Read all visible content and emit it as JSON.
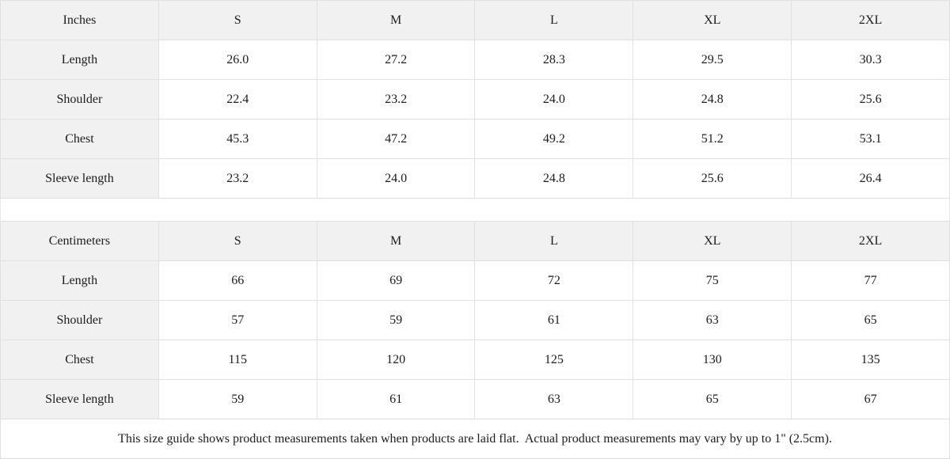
{
  "sizes": [
    "S",
    "M",
    "L",
    "XL",
    "2XL"
  ],
  "tables": [
    {
      "unit": "Inches",
      "rows": [
        {
          "label": "Length",
          "values": [
            "26.0",
            "27.2",
            "28.3",
            "29.5",
            "30.3"
          ]
        },
        {
          "label": "Shoulder",
          "values": [
            "22.4",
            "23.2",
            "24.0",
            "24.8",
            "25.6"
          ]
        },
        {
          "label": "Chest",
          "values": [
            "45.3",
            "47.2",
            "49.2",
            "51.2",
            "53.1"
          ]
        },
        {
          "label": "Sleeve length",
          "values": [
            "23.2",
            "24.0",
            "24.8",
            "25.6",
            "26.4"
          ]
        }
      ]
    },
    {
      "unit": "Centimeters",
      "rows": [
        {
          "label": "Length",
          "values": [
            "66",
            "69",
            "72",
            "75",
            "77"
          ]
        },
        {
          "label": "Shoulder",
          "values": [
            "57",
            "59",
            "61",
            "63",
            "65"
          ]
        },
        {
          "label": "Chest",
          "values": [
            "115",
            "120",
            "125",
            "130",
            "135"
          ]
        },
        {
          "label": "Sleeve length",
          "values": [
            "59",
            "61",
            "63",
            "65",
            "67"
          ]
        }
      ]
    }
  ],
  "footer": {
    "note": "This size guide shows product measurements taken when products are laid flat.  Actual product measurements may vary by up to 1\" (2.5cm)."
  },
  "colors": {
    "header_bg": "#f1f1f1",
    "cell_bg": "#ffffff",
    "border": "#e0e0e0",
    "text": "#1c1c1c"
  },
  "chart_data": [
    {
      "type": "table",
      "title": "Inches",
      "columns": [
        "Inches",
        "S",
        "M",
        "L",
        "XL",
        "2XL"
      ],
      "rows": [
        [
          "Length",
          26.0,
          27.2,
          28.3,
          29.5,
          30.3
        ],
        [
          "Shoulder",
          22.4,
          23.2,
          24.0,
          24.8,
          25.6
        ],
        [
          "Chest",
          45.3,
          47.2,
          49.2,
          51.2,
          53.1
        ],
        [
          "Sleeve length",
          23.2,
          24.0,
          24.8,
          25.6,
          26.4
        ]
      ]
    },
    {
      "type": "table",
      "title": "Centimeters",
      "columns": [
        "Centimeters",
        "S",
        "M",
        "L",
        "XL",
        "2XL"
      ],
      "rows": [
        [
          "Length",
          66,
          69,
          72,
          75,
          77
        ],
        [
          "Shoulder",
          57,
          59,
          61,
          63,
          65
        ],
        [
          "Chest",
          115,
          120,
          125,
          130,
          135
        ],
        [
          "Sleeve length",
          59,
          61,
          63,
          65,
          67
        ]
      ]
    }
  ]
}
